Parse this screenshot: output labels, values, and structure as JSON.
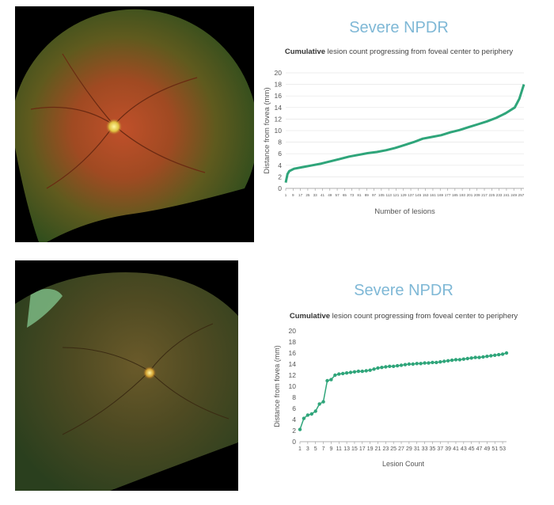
{
  "colors": {
    "line": "#2fa57a",
    "title": "#7fb8d6",
    "axis": "#999999",
    "text": "#555555"
  },
  "figure_top": {
    "image": "fundus-photo"
  },
  "figure_bottom": {
    "image": "fundus-photo"
  },
  "chart_data": [
    {
      "type": "line",
      "title": "Severe NPDR",
      "subtitle_bold": "Cumulative",
      "subtitle_rest": " lesion count progressing from foveal center to periphery",
      "xlabel": "Number of lesions",
      "ylabel": "Distance from fovea (mm)",
      "ylim": [
        0,
        20
      ],
      "yticks": [
        0,
        2,
        4,
        6,
        8,
        10,
        12,
        14,
        16,
        18,
        20
      ],
      "xlim": [
        1,
        260
      ],
      "xticks": [
        "1",
        "9",
        "17",
        "25",
        "33",
        "41",
        "49",
        "57",
        "65",
        "73",
        "81",
        "89",
        "97",
        "105",
        "113",
        "121",
        "129",
        "137",
        "145",
        "153",
        "161",
        "169",
        "177",
        "185",
        "193",
        "201",
        "209",
        "217",
        "225",
        "233",
        "241",
        "249",
        "257"
      ],
      "x": [
        1,
        3,
        5,
        10,
        20,
        30,
        40,
        50,
        60,
        70,
        80,
        90,
        100,
        110,
        120,
        130,
        140,
        150,
        160,
        170,
        180,
        190,
        200,
        210,
        220,
        230,
        240,
        250,
        255,
        260
      ],
      "y": [
        1.0,
        2.5,
        3.0,
        3.4,
        3.7,
        4.0,
        4.3,
        4.7,
        5.1,
        5.5,
        5.8,
        6.1,
        6.3,
        6.6,
        7.0,
        7.5,
        8.0,
        8.6,
        8.9,
        9.2,
        9.7,
        10.1,
        10.6,
        11.1,
        11.6,
        12.2,
        13.0,
        14.0,
        15.5,
        18.0
      ],
      "grid": true
    },
    {
      "type": "line",
      "title": "Severe NPDR",
      "subtitle_bold": "Cumulative",
      "subtitle_rest": " lesion count progressing from foveal center to periphery",
      "xlabel": "Lesion Count",
      "ylabel": "Distance from fovea (mm)",
      "ylim": [
        0,
        20
      ],
      "yticks": [
        0,
        2,
        4,
        6,
        8,
        10,
        12,
        14,
        16,
        18,
        20
      ],
      "xlim": [
        1,
        54
      ],
      "xticks": [
        "1",
        "3",
        "5",
        "7",
        "9",
        "11",
        "13",
        "15",
        "17",
        "19",
        "21",
        "23",
        "25",
        "27",
        "29",
        "31",
        "33",
        "35",
        "37",
        "39",
        "41",
        "43",
        "45",
        "47",
        "49",
        "51",
        "53"
      ],
      "x": [
        1,
        2,
        3,
        4,
        5,
        6,
        7,
        8,
        9,
        10,
        11,
        12,
        13,
        14,
        15,
        16,
        17,
        18,
        19,
        20,
        21,
        22,
        23,
        24,
        25,
        26,
        27,
        28,
        29,
        30,
        31,
        32,
        33,
        34,
        35,
        36,
        37,
        38,
        39,
        40,
        41,
        42,
        43,
        44,
        45,
        46,
        47,
        48,
        49,
        50,
        51,
        52,
        53,
        54
      ],
      "y": [
        2.2,
        4.2,
        4.8,
        5.0,
        5.5,
        6.8,
        7.2,
        11.0,
        11.2,
        12.0,
        12.2,
        12.3,
        12.4,
        12.5,
        12.6,
        12.7,
        12.7,
        12.8,
        12.9,
        13.1,
        13.3,
        13.4,
        13.5,
        13.6,
        13.6,
        13.7,
        13.8,
        13.9,
        14.0,
        14.0,
        14.1,
        14.1,
        14.2,
        14.2,
        14.3,
        14.3,
        14.4,
        14.5,
        14.6,
        14.7,
        14.8,
        14.8,
        14.9,
        15.0,
        15.1,
        15.2,
        15.2,
        15.3,
        15.4,
        15.5,
        15.6,
        15.7,
        15.8,
        16.0
      ],
      "grid": false
    }
  ]
}
